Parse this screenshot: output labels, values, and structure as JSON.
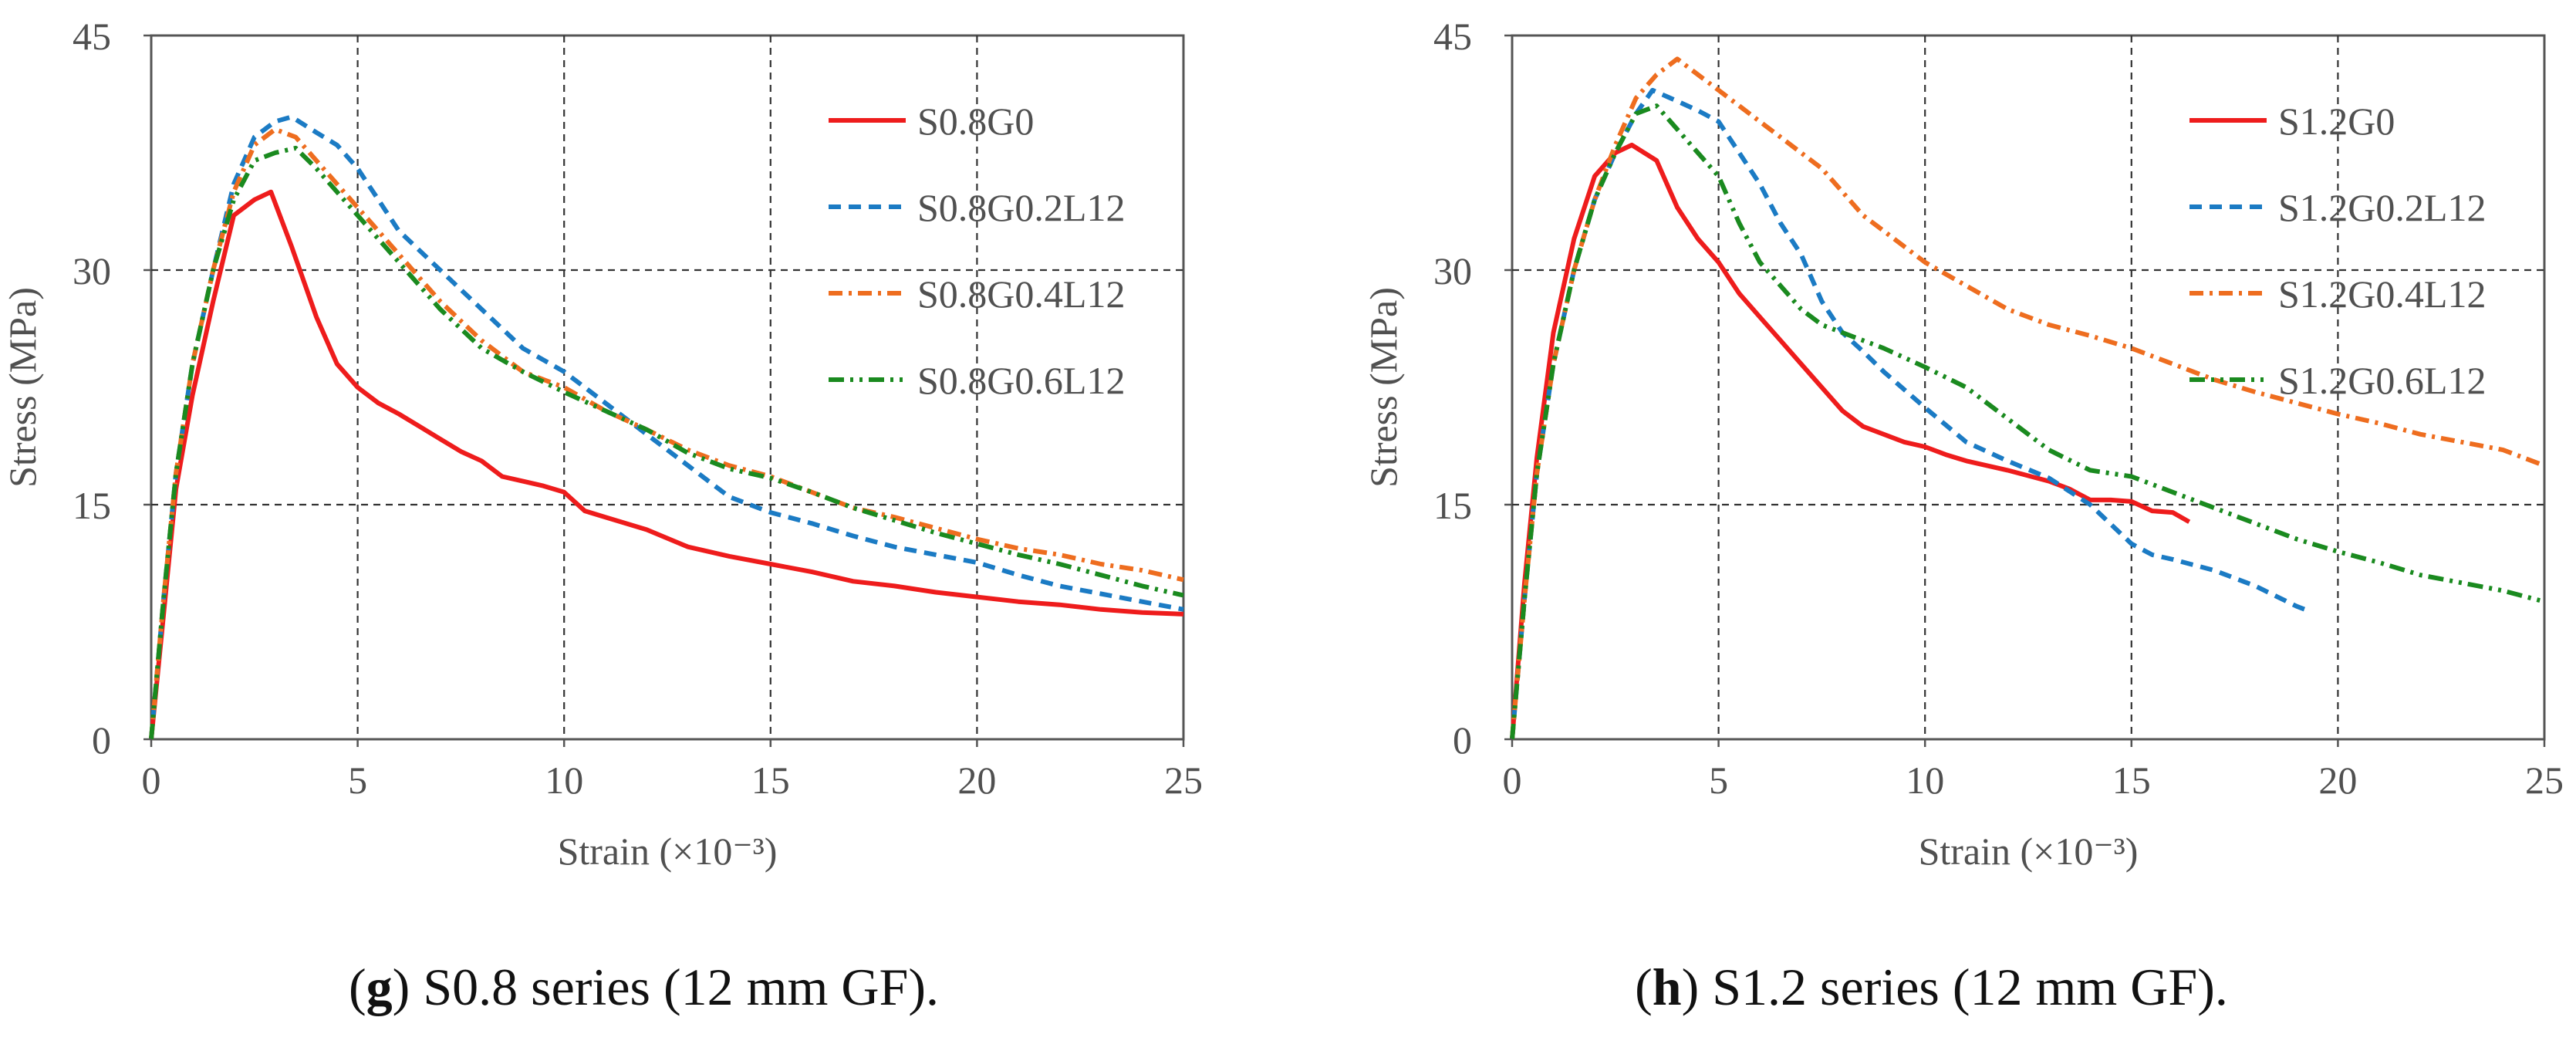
{
  "chart_data": [
    {
      "type": "line",
      "panel_letter": "g",
      "caption": "S0.8 series (12 mm GF).",
      "xlabel": "Strain (×10⁻³)",
      "ylabel": "Stress (MPa)",
      "xlim": [
        0,
        25
      ],
      "ylim": [
        0,
        45
      ],
      "xticks": [
        "0",
        "5",
        "10",
        "15",
        "20",
        "25"
      ],
      "yticks": [
        "0",
        "15",
        "30",
        "45"
      ],
      "grid": "dashed at x=5,10,15,20 and y=15,30",
      "legend_position": "top-right",
      "series": [
        {
          "name": "S0.8G0",
          "color": "#ee1c1c",
          "dash": "solid",
          "x": [
            0,
            0.3,
            0.6,
            1,
            1.5,
            2,
            2.5,
            2.9,
            3.4,
            4,
            4.5,
            5,
            5.5,
            6,
            6.5,
            7,
            7.5,
            8,
            8.5,
            9,
            9.5,
            10,
            10.5,
            11,
            12,
            13,
            14,
            15,
            16,
            17,
            18,
            19,
            20,
            21,
            22,
            23,
            24,
            25
          ],
          "y": [
            0,
            8,
            16,
            22,
            28,
            33.5,
            34.5,
            35,
            31.5,
            27,
            24,
            22.5,
            21.5,
            20.8,
            20,
            19.2,
            18.4,
            17.8,
            16.8,
            16.5,
            16.2,
            15.8,
            14.6,
            14.2,
            13.4,
            12.3,
            11.7,
            11.2,
            10.7,
            10.1,
            9.8,
            9.4,
            9.1,
            8.8,
            8.6,
            8.3,
            8.1,
            8
          ]
        },
        {
          "name": "S0.8G0.2L12",
          "color": "#1b7bc4",
          "dash": "dashed",
          "x": [
            0,
            0.3,
            0.6,
            1,
            1.5,
            2,
            2.5,
            3,
            3.4,
            4,
            4.5,
            5,
            5.5,
            6,
            7,
            8,
            9,
            10,
            11,
            12,
            13,
            14,
            15,
            16,
            17,
            18,
            19,
            20,
            21,
            22,
            23,
            24,
            25
          ],
          "y": [
            0,
            9,
            17,
            24,
            30,
            35.5,
            38.5,
            39.5,
            39.8,
            38.8,
            38,
            36.5,
            34.5,
            32.5,
            30,
            27.5,
            25,
            23.5,
            21.5,
            19.5,
            17.5,
            15.5,
            14.5,
            13.8,
            13,
            12.3,
            11.8,
            11.3,
            10.5,
            9.8,
            9.3,
            8.8,
            8.3
          ]
        },
        {
          "name": "S0.8G0.4L12",
          "color": "#ee6d1f",
          "dash": "dashdot",
          "x": [
            0,
            0.3,
            0.6,
            1,
            1.5,
            2,
            2.5,
            3,
            3.5,
            4,
            4.5,
            5,
            6,
            7,
            8,
            9,
            10,
            11,
            12,
            13,
            14,
            15,
            16,
            17,
            18,
            19,
            20,
            21,
            22,
            23,
            24,
            25
          ],
          "y": [
            0,
            9,
            17,
            24,
            30,
            35,
            38,
            39,
            38.5,
            37,
            35.5,
            34,
            31,
            28,
            25.5,
            23.5,
            22.5,
            21,
            19.8,
            18.5,
            17.5,
            16.8,
            15.8,
            14.8,
            14.2,
            13.5,
            12.8,
            12.2,
            11.8,
            11.2,
            10.8,
            10.2
          ]
        },
        {
          "name": "S0.8G0.6L12",
          "color": "#1a8a1f",
          "dash": "dashdotdot",
          "x": [
            0,
            0.3,
            0.6,
            1,
            1.5,
            2,
            2.5,
            3,
            3.5,
            4,
            4.5,
            5,
            6,
            7,
            8,
            9,
            10,
            11,
            12,
            13,
            14,
            15,
            16,
            17,
            18,
            19,
            20,
            21,
            22,
            23,
            24,
            25
          ],
          "y": [
            0,
            9,
            17,
            24,
            30,
            34.5,
            37,
            37.5,
            37.8,
            36.5,
            35,
            33.5,
            30.5,
            27.5,
            25,
            23.5,
            22.2,
            21,
            19.8,
            18.3,
            17.3,
            16.7,
            15.8,
            14.8,
            14,
            13.2,
            12.5,
            11.8,
            11.2,
            10.5,
            9.8,
            9.2
          ]
        }
      ]
    },
    {
      "type": "line",
      "panel_letter": "h",
      "caption": "S1.2 series (12 mm GF).",
      "xlabel": "Strain (×10⁻³)",
      "ylabel": "Stress (MPa)",
      "xlim": [
        0,
        25
      ],
      "ylim": [
        0,
        45
      ],
      "xticks": [
        "0",
        "5",
        "10",
        "15",
        "20",
        "25"
      ],
      "yticks": [
        "0",
        "15",
        "30",
        "45"
      ],
      "grid": "dashed at x=5,10,15,20 and y=15,30",
      "legend_position": "top-right",
      "series": [
        {
          "name": "S1.2G0",
          "color": "#ee1c1c",
          "dash": "solid",
          "x": [
            0,
            0.3,
            0.6,
            1,
            1.5,
            2,
            2.5,
            2.9,
            3.5,
            4,
            4.5,
            5,
            5.5,
            6,
            6.5,
            7,
            7.5,
            8,
            8.5,
            9,
            9.5,
            10,
            10.5,
            11,
            12,
            13,
            13.5,
            14,
            14.5,
            15,
            15.5,
            16,
            16.4
          ],
          "y": [
            0,
            10,
            18,
            26,
            32,
            36,
            37.5,
            38,
            37,
            34,
            32,
            30.5,
            28.5,
            27,
            25.5,
            24,
            22.5,
            21,
            20,
            19.5,
            19,
            18.7,
            18.2,
            17.8,
            17.2,
            16.5,
            16,
            15.3,
            15.3,
            15.2,
            14.6,
            14.5,
            13.9
          ]
        },
        {
          "name": "S1.2G0.2L12",
          "color": "#1b7bc4",
          "dash": "dashed",
          "x": [
            0,
            0.3,
            0.6,
            1,
            1.5,
            2,
            2.5,
            3,
            3.4,
            4,
            4.5,
            5,
            5.5,
            6,
            6.5,
            7,
            7.5,
            8,
            8.5,
            9,
            10,
            11,
            12,
            13,
            14,
            15,
            15.5,
            16,
            17,
            18,
            19,
            19.3
          ],
          "y": [
            0,
            9,
            17,
            24,
            30,
            34.5,
            37.5,
            40,
            41.5,
            40.8,
            40.2,
            39.5,
            37.5,
            35.5,
            33,
            31,
            28,
            26,
            24.8,
            23.5,
            21.2,
            19,
            17.8,
            16.7,
            15,
            12.5,
            11.8,
            11.5,
            10.8,
            9.8,
            8.5,
            8.2
          ]
        },
        {
          "name": "S1.2G0.4L12",
          "color": "#ee6d1f",
          "dash": "dashdot",
          "x": [
            0,
            0.3,
            0.6,
            1,
            1.5,
            2,
            2.5,
            3,
            3.5,
            4,
            4.5,
            5,
            5.5,
            6,
            6.5,
            7,
            7.5,
            8,
            8.5,
            9,
            10,
            11,
            12,
            13,
            14,
            15,
            16,
            17,
            18,
            19,
            20,
            21,
            22,
            23,
            24,
            25
          ],
          "y": [
            0,
            9,
            17,
            24,
            30,
            34.5,
            38,
            41,
            42.5,
            43.5,
            42.5,
            41.5,
            40.5,
            39.5,
            38.5,
            37.5,
            36.5,
            35,
            33.5,
            32.5,
            30.5,
            29,
            27.5,
            26.5,
            25.8,
            25,
            24,
            23,
            22.2,
            21.5,
            20.8,
            20.2,
            19.5,
            19,
            18.5,
            17.5
          ]
        },
        {
          "name": "S1.2G0.6L12",
          "color": "#1a8a1f",
          "dash": "dashdotdot",
          "x": [
            0,
            0.3,
            0.6,
            1,
            1.5,
            2,
            2.5,
            3,
            3.5,
            4,
            4.5,
            5,
            5.5,
            6,
            6.5,
            7,
            7.5,
            8,
            8.5,
            9,
            10,
            11,
            12,
            13,
            14,
            15,
            16,
            17,
            18,
            19,
            20,
            21,
            22,
            23,
            24,
            25
          ],
          "y": [
            0,
            9,
            17,
            24,
            30,
            34.5,
            37.5,
            40,
            40.5,
            39,
            37.5,
            36,
            33,
            30.5,
            29,
            27.5,
            26.5,
            26,
            25.5,
            25,
            23.8,
            22.5,
            20.5,
            18.5,
            17.2,
            16.8,
            15.8,
            14.8,
            13.8,
            12.8,
            12,
            11.3,
            10.5,
            10,
            9.5,
            8.8
          ]
        }
      ]
    }
  ]
}
